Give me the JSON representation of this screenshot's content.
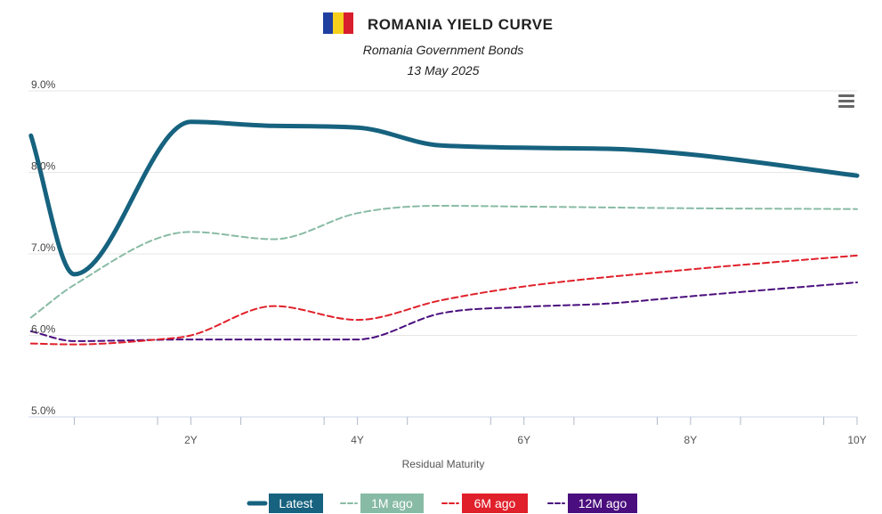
{
  "colors": {
    "latest": "#16627f",
    "m1": "#88bba5",
    "m6": "#e0202a",
    "m12": "#4a0e7e",
    "flag_blue": "#1f3fa0",
    "flag_yellow": "#f4cf1c",
    "flag_red": "#d81e2c"
  },
  "menu_icon": "hamburger-menu-icon",
  "flag_icon": "romania-flag-icon",
  "chart_data": {
    "type": "line",
    "title": "ROMANIA YIELD CURVE",
    "subtitle": "Romania Government Bonds",
    "date": "13 May 2025",
    "xlabel": "Residual Maturity",
    "ylabel": "",
    "xlim": [
      0.05,
      10.0
    ],
    "ylim": [
      5.0,
      9.0
    ],
    "y_ticks": [
      {
        "value": 5.0,
        "label": "5.0%"
      },
      {
        "value": 6.0,
        "label": "6.0%"
      },
      {
        "value": 7.0,
        "label": "7.0%"
      },
      {
        "value": 8.0,
        "label": "8.0%"
      },
      {
        "value": 9.0,
        "label": "9.0%"
      }
    ],
    "x_minor_ticks": [
      0.6,
      1.6,
      2.6,
      3.6,
      4.6,
      5.6,
      6.6,
      7.6,
      8.6,
      9.6
    ],
    "x_ticks": [
      {
        "value": 2,
        "label": "2Y"
      },
      {
        "value": 4,
        "label": "4Y"
      },
      {
        "value": 6,
        "label": "6Y"
      },
      {
        "value": 8,
        "label": "8Y"
      },
      {
        "value": 10,
        "label": "10Y"
      }
    ],
    "grid": true,
    "legend_position": "bottom-center",
    "series": [
      {
        "name": "Latest",
        "style": "solid",
        "color_key": "latest",
        "points": [
          [
            0.08,
            8.45
          ],
          [
            0.6,
            6.75
          ],
          [
            2.0,
            8.62
          ],
          [
            3.0,
            8.57
          ],
          [
            4.0,
            8.55
          ],
          [
            5.0,
            8.33
          ],
          [
            7.0,
            8.29
          ],
          [
            8.0,
            8.22
          ],
          [
            10.0,
            7.96
          ]
        ]
      },
      {
        "name": "1M ago",
        "style": "dashdot",
        "color_key": "m1",
        "points": [
          [
            0.08,
            6.22
          ],
          [
            0.6,
            6.62
          ],
          [
            2.0,
            7.27
          ],
          [
            3.0,
            7.18
          ],
          [
            4.0,
            7.5
          ],
          [
            5.0,
            7.59
          ],
          [
            6.0,
            7.58
          ],
          [
            8.0,
            7.56
          ],
          [
            10.0,
            7.55
          ]
        ]
      },
      {
        "name": "6M ago",
        "style": "dashdot",
        "color_key": "m6",
        "points": [
          [
            0.08,
            5.9
          ],
          [
            0.6,
            5.89
          ],
          [
            1.6,
            5.95
          ],
          [
            2.0,
            6.0
          ],
          [
            3.0,
            6.36
          ],
          [
            4.0,
            6.19
          ],
          [
            5.0,
            6.43
          ],
          [
            6.0,
            6.6
          ],
          [
            8.0,
            6.81
          ],
          [
            10.0,
            6.98
          ]
        ]
      },
      {
        "name": "12M ago",
        "style": "dashdot",
        "color_key": "m12",
        "points": [
          [
            0.08,
            6.05
          ],
          [
            0.6,
            5.93
          ],
          [
            2.0,
            5.95
          ],
          [
            3.0,
            5.95
          ],
          [
            4.0,
            5.95
          ],
          [
            5.0,
            6.27
          ],
          [
            6.0,
            6.35
          ],
          [
            7.0,
            6.39
          ],
          [
            8.0,
            6.48
          ],
          [
            10.0,
            6.65
          ]
        ]
      }
    ]
  }
}
